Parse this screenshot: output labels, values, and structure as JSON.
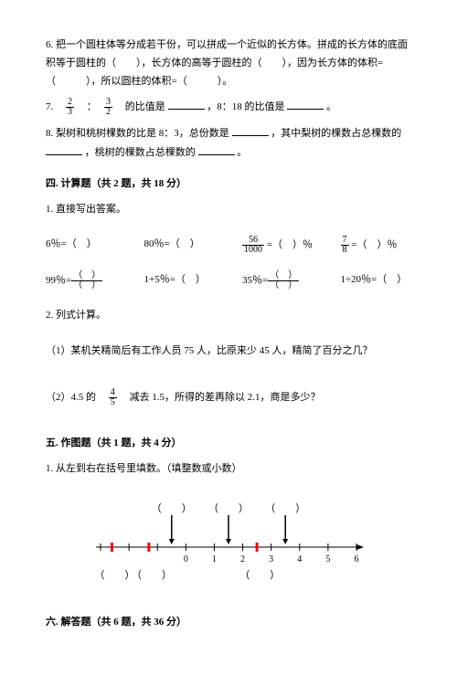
{
  "q6": {
    "text_parts": [
      "6. 把一个圆柱体等分成若干份，可以拼成一个近似的长方体。拼成的长方体的底面积等于圆柱的（　　），长方体的高等于圆柱的（　　），因为长方体的体积=（　　　），所以圆柱的体积=（　　　）。"
    ]
  },
  "q7": {
    "prefix": "7.　",
    "frac1_num": "2",
    "frac1_den": "3",
    "colon": "　：　",
    "frac2_num": "3",
    "frac2_den": "2",
    "mid": "　的比值是",
    "mid2": "，8：18 的比值是",
    "end": "。"
  },
  "q8": {
    "text": "8. 梨树和桃树棵数的比是 8：3，总份数是",
    "text2": "，其中梨树的棵数占总棵数的",
    "text3": "，桃树的棵数占总棵数的",
    "text4": "。"
  },
  "section4": {
    "title": "四. 计算题（共 2 题，共 18 分）"
  },
  "calc1": {
    "title": "1. 直接写出答案。",
    "row1": {
      "a": "6％=（　）",
      "b": "80％=（　）",
      "c_num": "56",
      "c_den": "1000",
      "c_rest": " =（　）％",
      "d_num": "7",
      "d_den": "8",
      "d_rest": " =（　）％"
    },
    "row2": {
      "a_pre": "99％=",
      "b": "1+5％=（　）",
      "c_pre": "35％=",
      "d": "1÷20％=（　）"
    }
  },
  "calc2": {
    "title": "2. 列式计算。",
    "sub1": "（1）某机关精简后有工作人员 75 人，比原来少 45 人，精简了百分之几？",
    "sub2_pre": "（2）4.5 的　",
    "sub2_num": "4",
    "sub2_den": "5",
    "sub2_post": "　减去 1.5，所得的差再除以 2.1，商是多少？"
  },
  "section5": {
    "title": "五. 作图题（共 1 题，共 4 分）",
    "q1": "1. 从左到右在括号里填数。（填整数或小数）"
  },
  "number_line": {
    "min": -3,
    "max": 6,
    "ticks": [
      -3,
      -2,
      -1,
      0,
      1,
      2,
      3,
      4,
      5,
      6
    ],
    "tick_labels": [
      " ",
      " ",
      " ",
      "0",
      "1",
      "2",
      "3",
      "4",
      "5",
      "6"
    ],
    "red_marks": [
      -2.6,
      -1.3,
      2.5
    ],
    "top_brackets": [
      -0.5,
      1.5,
      3.5
    ],
    "bottom_brackets": [
      -2.5,
      -1.2,
      2.6
    ],
    "colors": {
      "line": "#000000",
      "red": "#ff0000"
    }
  },
  "section6": {
    "title": "六. 解答题（共 6 题，共 36 分）"
  }
}
